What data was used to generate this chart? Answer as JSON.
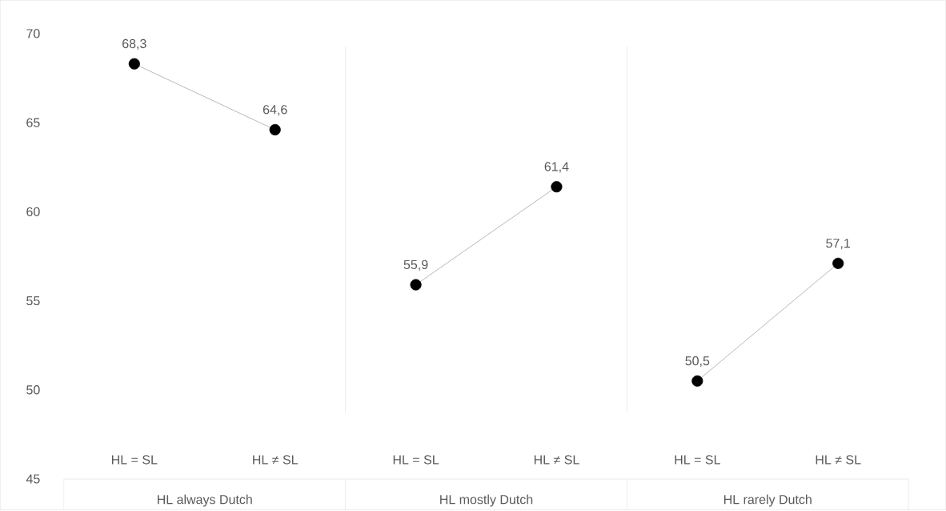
{
  "chart_data": {
    "type": "line",
    "categories": [
      "HL = SL",
      "HL ≠ SL",
      "HL = SL",
      "HL ≠ SL",
      "HL = SL",
      "HL ≠ SL"
    ],
    "series": [
      {
        "color": "#000000",
        "values": [
          68.3,
          64.6,
          null,
          null,
          null,
          null
        ],
        "value_labels": [
          "68,3",
          "64,6",
          null,
          null,
          null,
          null
        ]
      },
      {
        "color": "#000000",
        "values": [
          null,
          null,
          55.9,
          61.4,
          null,
          null
        ],
        "value_labels": [
          null,
          null,
          "55,9",
          "61,4",
          null,
          null
        ]
      },
      {
        "color": "#000000",
        "values": [
          null,
          null,
          null,
          null,
          50.5,
          57.1
        ],
        "value_labels": [
          null,
          null,
          null,
          null,
          "50,5",
          "57,1"
        ]
      }
    ],
    "annotations": [
      "HL always Dutch",
      "HL mostly Dutch",
      "HL rarely Dutch"
    ],
    "ylim": [
      45,
      70
    ],
    "yticks": [
      45,
      50,
      55,
      60,
      65,
      70
    ],
    "marker": "circle",
    "line_style": "solid"
  }
}
